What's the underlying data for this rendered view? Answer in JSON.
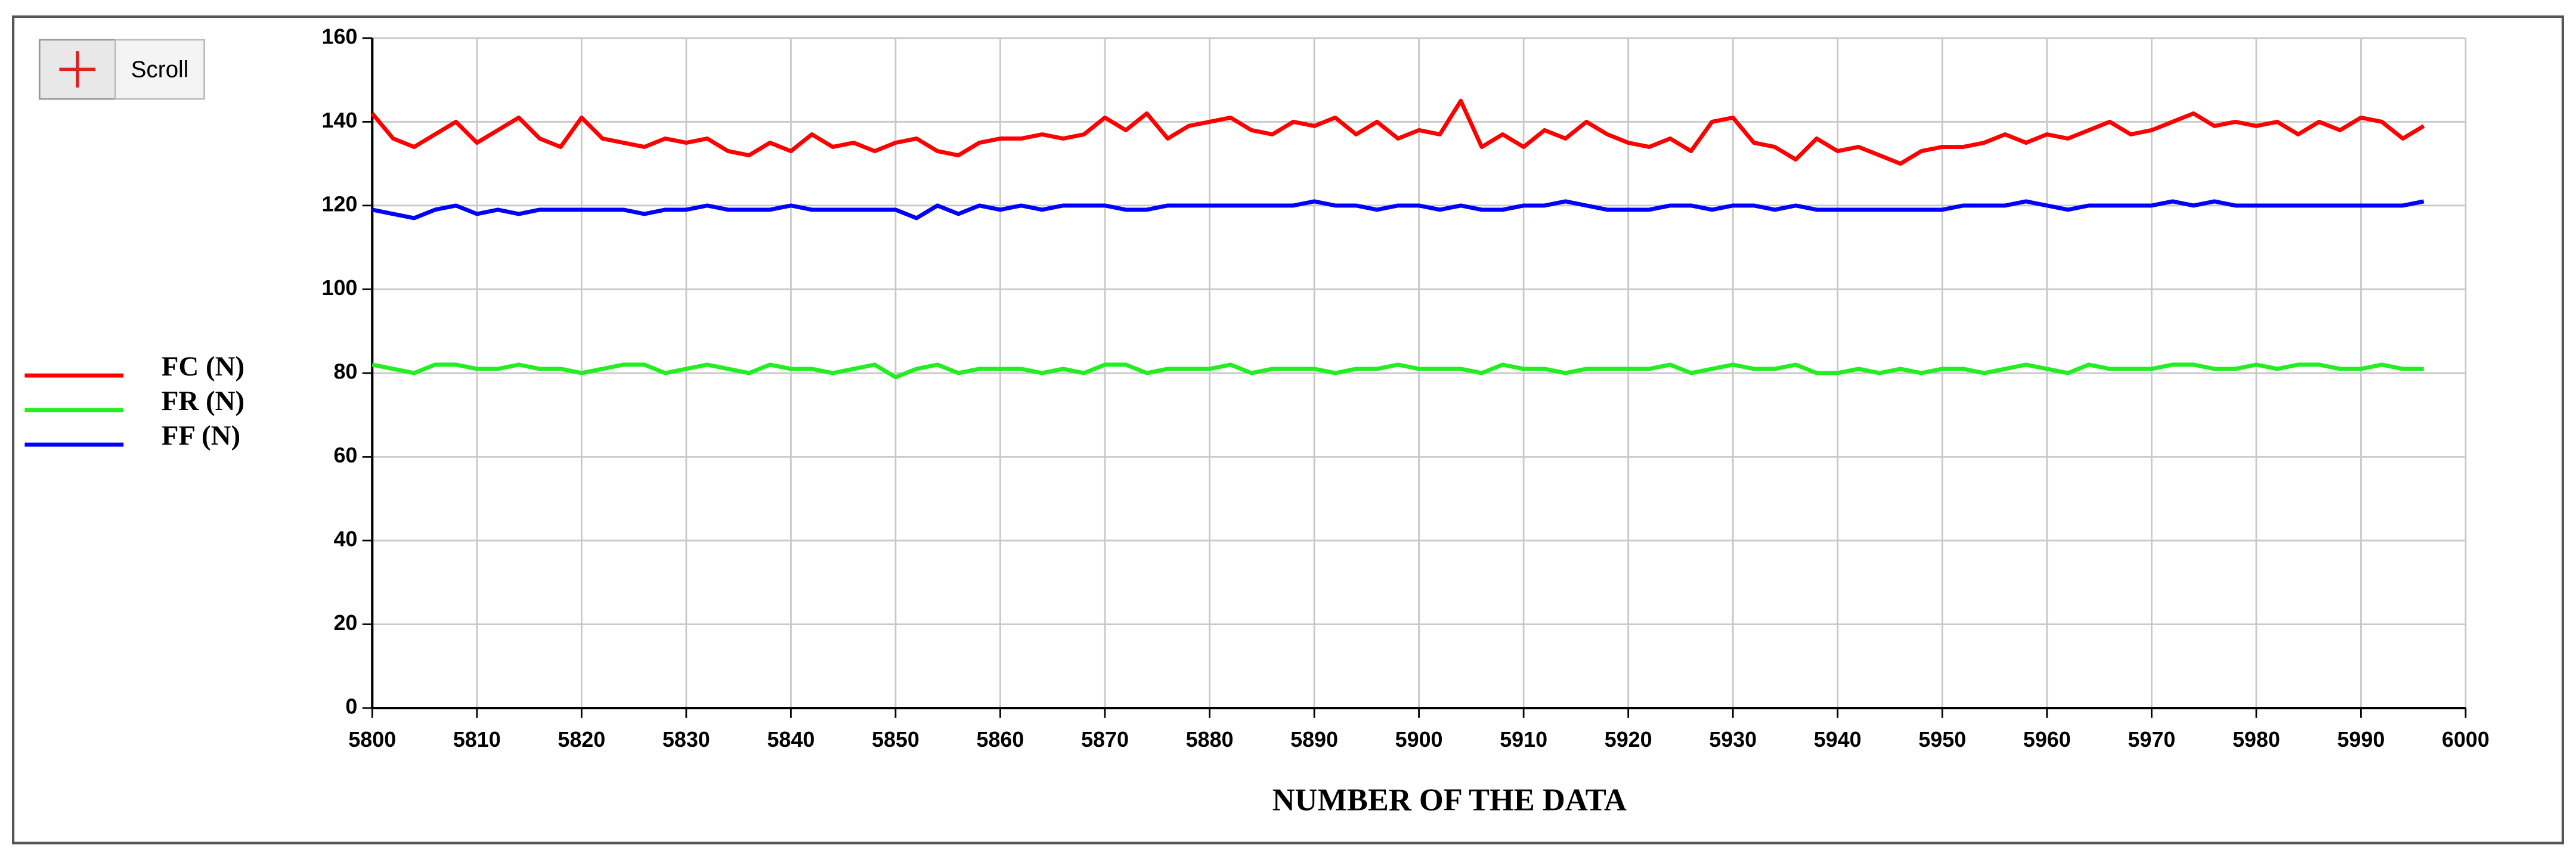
{
  "scroll_button": "Scroll",
  "chart_data": {
    "type": "line",
    "xlabel": "NUMBER OF THE DATA",
    "x": [
      5800,
      5802,
      5804,
      5806,
      5808,
      5810,
      5812,
      5814,
      5816,
      5818,
      5820,
      5822,
      5824,
      5826,
      5828,
      5830,
      5832,
      5834,
      5836,
      5838,
      5840,
      5842,
      5844,
      5846,
      5848,
      5850,
      5852,
      5854,
      5856,
      5858,
      5860,
      5862,
      5864,
      5866,
      5868,
      5870,
      5872,
      5874,
      5876,
      5878,
      5880,
      5882,
      5884,
      5886,
      5888,
      5890,
      5892,
      5894,
      5896,
      5898,
      5900,
      5902,
      5904,
      5906,
      5908,
      5910,
      5912,
      5914,
      5916,
      5918,
      5920,
      5922,
      5924,
      5926,
      5928,
      5930,
      5932,
      5934,
      5936,
      5938,
      5940,
      5942,
      5944,
      5946,
      5948,
      5950,
      5952,
      5954,
      5956,
      5958,
      5960,
      5962,
      5964,
      5966,
      5968,
      5970,
      5972,
      5974,
      5976,
      5978,
      5980,
      5982,
      5984,
      5986,
      5988,
      5990,
      5992,
      5994,
      5996
    ],
    "series": [
      {
        "name": "FC (N)",
        "color": "#ff0000",
        "values": [
          142,
          136,
          134,
          137,
          140,
          135,
          138,
          141,
          136,
          134,
          141,
          136,
          135,
          134,
          136,
          135,
          136,
          133,
          132,
          135,
          133,
          137,
          134,
          135,
          133,
          135,
          136,
          133,
          132,
          135,
          136,
          136,
          137,
          136,
          137,
          141,
          138,
          142,
          136,
          139,
          140,
          141,
          138,
          137,
          140,
          139,
          141,
          137,
          140,
          136,
          138,
          137,
          145,
          134,
          137,
          134,
          138,
          136,
          140,
          137,
          135,
          134,
          136,
          133,
          140,
          141,
          135,
          134,
          131,
          136,
          133,
          134,
          132,
          130,
          133,
          134,
          134,
          135,
          137,
          135,
          137,
          136,
          138,
          140,
          137,
          138,
          140,
          142,
          139,
          140,
          139,
          140,
          137,
          140,
          138,
          141,
          140,
          136,
          139
        ]
      },
      {
        "name": "FR (N)",
        "color": "#22ee22",
        "values": [
          82,
          81,
          80,
          82,
          82,
          81,
          81,
          82,
          81,
          81,
          80,
          81,
          82,
          82,
          80,
          81,
          82,
          81,
          80,
          82,
          81,
          81,
          80,
          81,
          82,
          79,
          81,
          82,
          80,
          81,
          81,
          81,
          80,
          81,
          80,
          82,
          82,
          80,
          81,
          81,
          81,
          82,
          80,
          81,
          81,
          81,
          80,
          81,
          81,
          82,
          81,
          81,
          81,
          80,
          82,
          81,
          81,
          80,
          81,
          81,
          81,
          81,
          82,
          80,
          81,
          82,
          81,
          81,
          82,
          80,
          80,
          81,
          80,
          81,
          80,
          81,
          81,
          80,
          81,
          82,
          81,
          80,
          82,
          81,
          81,
          81,
          82,
          82,
          81,
          81,
          82,
          81,
          82,
          82,
          81,
          81,
          82,
          81,
          81
        ]
      },
      {
        "name": "FF (N)",
        "color": "#0000ff",
        "values": [
          119,
          118,
          117,
          119,
          120,
          118,
          119,
          118,
          119,
          119,
          119,
          119,
          119,
          118,
          119,
          119,
          120,
          119,
          119,
          119,
          120,
          119,
          119,
          119,
          119,
          119,
          117,
          120,
          118,
          120,
          119,
          120,
          119,
          120,
          120,
          120,
          119,
          119,
          120,
          120,
          120,
          120,
          120,
          120,
          120,
          121,
          120,
          120,
          119,
          120,
          120,
          119,
          120,
          119,
          119,
          120,
          120,
          121,
          120,
          119,
          119,
          119,
          120,
          120,
          119,
          120,
          120,
          119,
          120,
          119,
          119,
          119,
          119,
          119,
          119,
          119,
          120,
          120,
          120,
          121,
          120,
          119,
          120,
          120,
          120,
          120,
          121,
          120,
          121,
          120,
          120,
          120,
          120,
          120,
          120,
          120,
          120,
          120,
          121
        ]
      }
    ],
    "xlim": [
      5800,
      6000
    ],
    "xticks": [
      5800,
      5810,
      5820,
      5830,
      5840,
      5850,
      5860,
      5870,
      5880,
      5890,
      5900,
      5910,
      5920,
      5930,
      5940,
      5950,
      5960,
      5970,
      5980,
      5990,
      6000
    ],
    "ylim": [
      0,
      160
    ],
    "yticks": [
      0,
      20,
      40,
      60,
      80,
      100,
      120,
      140,
      160
    ],
    "grid": true
  }
}
